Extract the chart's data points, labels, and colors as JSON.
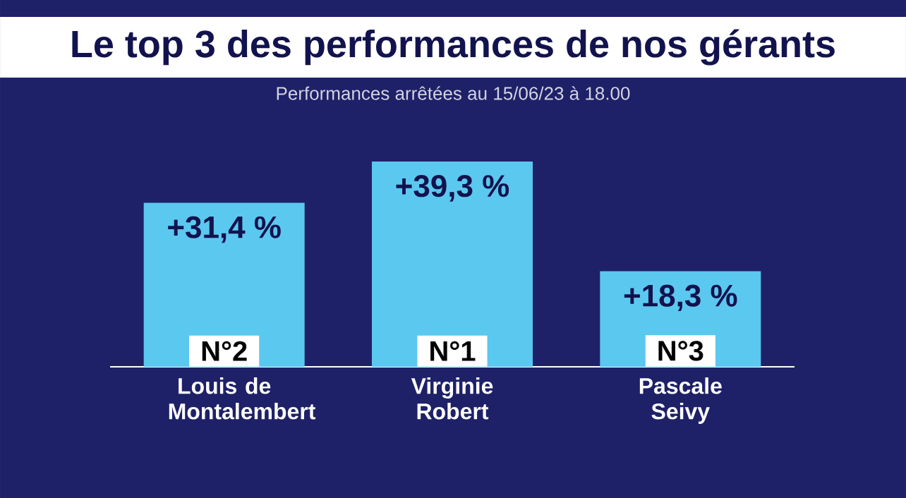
{
  "chart_data": {
    "type": "bar",
    "title": "Le top 3 des performances de nos gérants",
    "subtitle": "Performances arrêtées au 15/06/23 à 18.00",
    "categories": [
      "Louis de Montalembert",
      "Virginie Robert",
      "Pascale Seivy"
    ],
    "values": [
      31.4,
      39.3,
      18.3
    ],
    "color": "#5bc8f0",
    "value_labels": [
      "+31,4 %",
      "+39,3 %",
      "+18,3 %"
    ],
    "annotations": [
      {
        "text": "N°2",
        "x": "Louis de Montalembert",
        "y": 0
      },
      {
        "text": "N°1",
        "x": "Virginie Robert",
        "y": 0
      },
      {
        "text": "N°3",
        "x": "Pascale Seivy",
        "y": 0
      }
    ]
  }
}
